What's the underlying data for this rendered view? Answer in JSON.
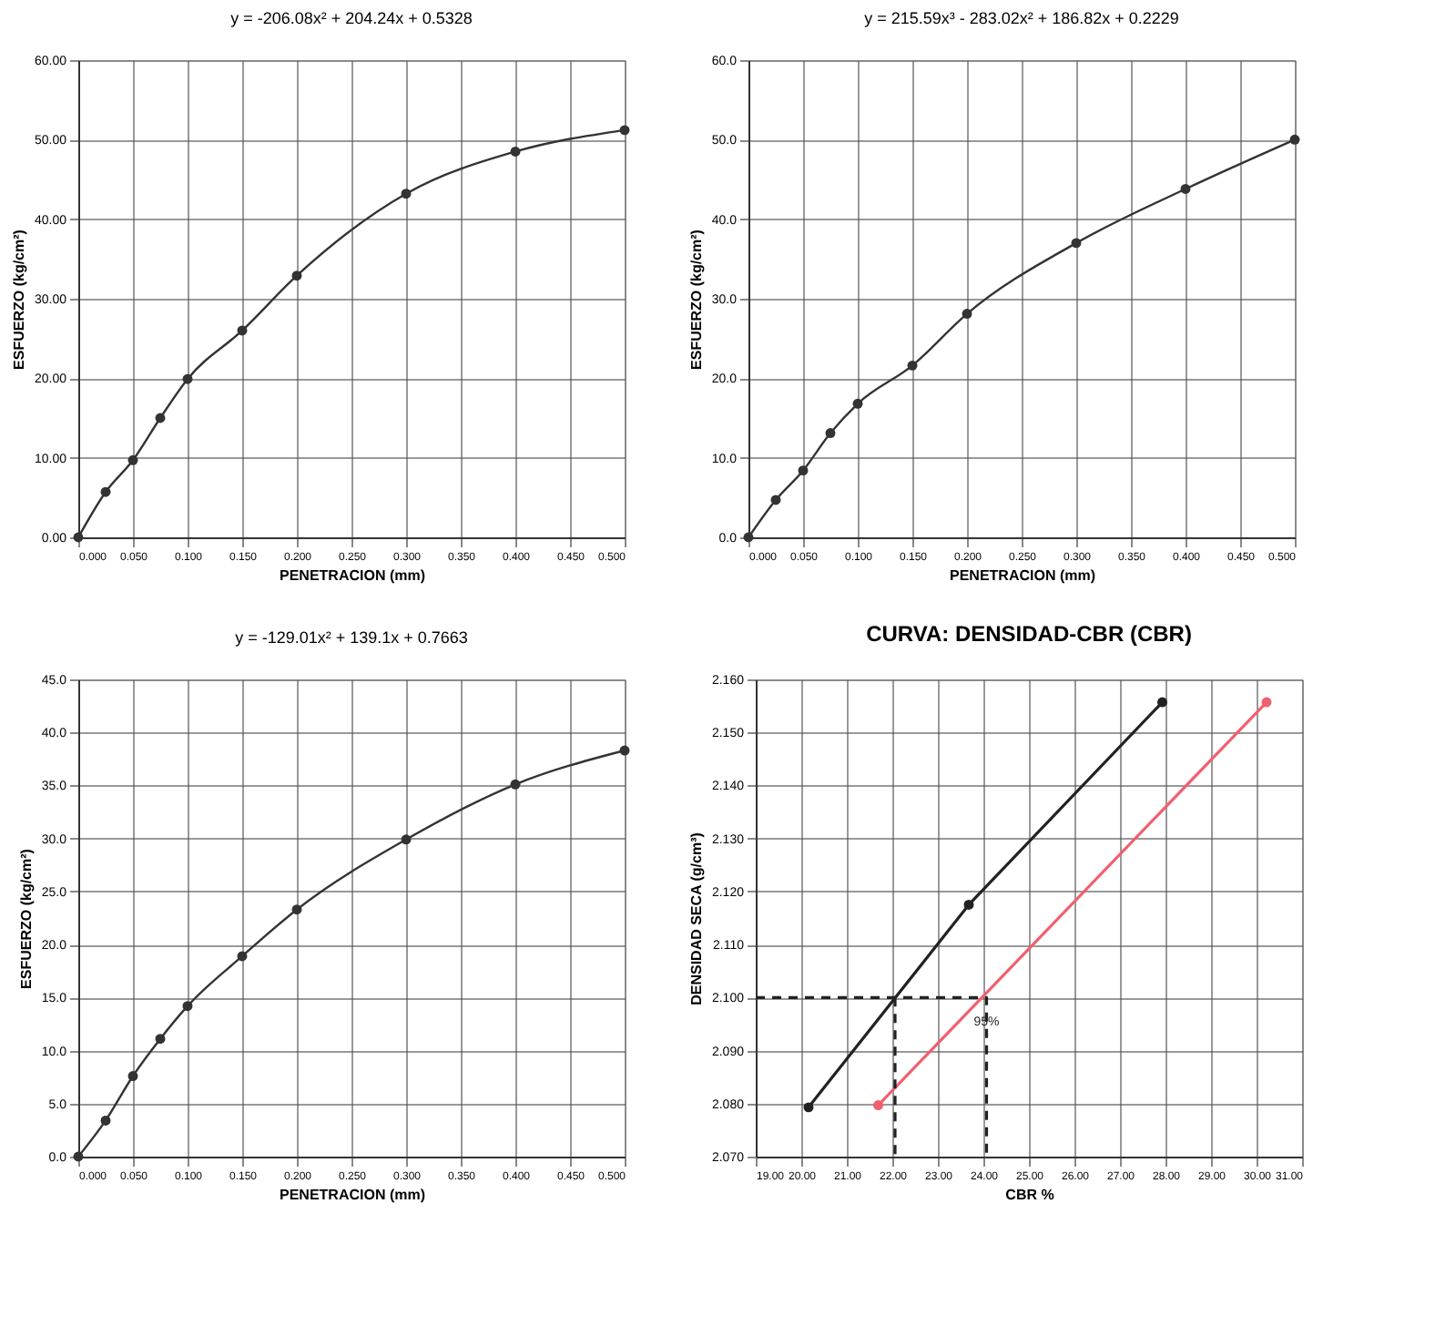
{
  "chart_data": [
    {
      "type": "scatter",
      "title": "y = -206.08x² + 204.24x + 0.5328",
      "xlabel": "PENETRACION (mm)",
      "ylabel": "ESFUERZO (kg/cm²)",
      "grid": true,
      "marker": "circle",
      "xlim": [
        0,
        0.5
      ],
      "ylim": [
        0,
        60
      ],
      "xticks": [
        {
          "value": 0,
          "label": "0.000"
        },
        {
          "value": 0.05,
          "label": "0.050"
        },
        {
          "value": 0.1,
          "label": "0.100"
        },
        {
          "value": 0.15,
          "label": "0.150"
        },
        {
          "value": 0.2,
          "label": "0.200"
        },
        {
          "value": 0.25,
          "label": "0.250"
        },
        {
          "value": 0.3,
          "label": "0.300"
        },
        {
          "value": 0.35,
          "label": "0.350"
        },
        {
          "value": 0.4,
          "label": "0.400"
        },
        {
          "value": 0.45,
          "label": "0.450"
        },
        {
          "value": 0.5,
          "label": "0.500"
        }
      ],
      "yticks": [
        {
          "value": 0,
          "label": "0.00"
        },
        {
          "value": 10,
          "label": "10.00"
        },
        {
          "value": 20,
          "label": "20.00"
        },
        {
          "value": 30,
          "label": "30.00"
        },
        {
          "value": 40,
          "label": "40.00"
        },
        {
          "value": 50,
          "label": "50.00"
        },
        {
          "value": 60,
          "label": "60.00"
        }
      ],
      "series": [
        {
          "type": "line",
          "color": "#333333",
          "x": [
            0,
            0.025,
            0.05,
            0.075,
            0.1,
            0.15,
            0.2,
            0.3,
            0.4,
            0.5
          ],
          "values": [
            0,
            5.7,
            9.7,
            15.0,
            19.9,
            26.0,
            32.9,
            43.2,
            48.5,
            51.2
          ]
        }
      ]
    },
    {
      "type": "scatter",
      "title": "y = 215.59x³ - 283.02x² + 186.82x + 0.2229",
      "xlabel": "PENETRACION (mm)",
      "ylabel": "ESFUERZO (kg/cm²)",
      "grid": true,
      "marker": "circle",
      "xlim": [
        0,
        0.5
      ],
      "ylim": [
        0,
        60
      ],
      "xticks": [
        {
          "value": 0,
          "label": "0.000"
        },
        {
          "value": 0.05,
          "label": "0.050"
        },
        {
          "value": 0.1,
          "label": "0.100"
        },
        {
          "value": 0.15,
          "label": "0.150"
        },
        {
          "value": 0.2,
          "label": "0.200"
        },
        {
          "value": 0.25,
          "label": "0.250"
        },
        {
          "value": 0.3,
          "label": "0.300"
        },
        {
          "value": 0.35,
          "label": "0.350"
        },
        {
          "value": 0.4,
          "label": "0.400"
        },
        {
          "value": 0.45,
          "label": "0.450"
        },
        {
          "value": 0.5,
          "label": "0.500"
        }
      ],
      "yticks": [
        {
          "value": 0,
          "label": "0.0"
        },
        {
          "value": 10,
          "label": "10.0"
        },
        {
          "value": 20,
          "label": "20.0"
        },
        {
          "value": 30,
          "label": "30.0"
        },
        {
          "value": 40,
          "label": "40.0"
        },
        {
          "value": 50,
          "label": "50.0"
        },
        {
          "value": 60,
          "label": "60.0"
        }
      ],
      "series": [
        {
          "type": "line",
          "color": "#333333",
          "x": [
            0,
            0.025,
            0.05,
            0.075,
            0.1,
            0.15,
            0.2,
            0.3,
            0.4,
            0.5
          ],
          "values": [
            0,
            4.7,
            8.4,
            13.1,
            16.8,
            21.6,
            28.1,
            37.0,
            43.8,
            50.0
          ]
        }
      ]
    },
    {
      "type": "scatter",
      "title": "y = -129.01x² + 139.1x + 0.7663",
      "xlabel": "PENETRACION (mm)",
      "ylabel": "ESFUERZO (kg/cm²)",
      "grid": true,
      "marker": "circle",
      "xlim": [
        0,
        0.5
      ],
      "ylim": [
        0,
        45
      ],
      "xticks": [
        {
          "value": 0,
          "label": "0.000"
        },
        {
          "value": 0.05,
          "label": "0.050"
        },
        {
          "value": 0.1,
          "label": "0.100"
        },
        {
          "value": 0.15,
          "label": "0.150"
        },
        {
          "value": 0.2,
          "label": "0.200"
        },
        {
          "value": 0.25,
          "label": "0.250"
        },
        {
          "value": 0.3,
          "label": "0.300"
        },
        {
          "value": 0.35,
          "label": "0.350"
        },
        {
          "value": 0.4,
          "label": "0.400"
        },
        {
          "value": 0.45,
          "label": "0.450"
        },
        {
          "value": 0.5,
          "label": "0.500"
        }
      ],
      "yticks": [
        {
          "value": 0,
          "label": "0.0"
        },
        {
          "value": 5,
          "label": "5.0"
        },
        {
          "value": 10,
          "label": "10.0"
        },
        {
          "value": 15,
          "label": "15.0"
        },
        {
          "value": 20,
          "label": "20.0"
        },
        {
          "value": 25,
          "label": "25.0"
        },
        {
          "value": 30,
          "label": "30.0"
        },
        {
          "value": 35,
          "label": "35.0"
        },
        {
          "value": 40,
          "label": "40.0"
        },
        {
          "value": 45,
          "label": "45.0"
        }
      ],
      "series": [
        {
          "type": "line",
          "color": "#333333",
          "x": [
            0,
            0.025,
            0.05,
            0.075,
            0.1,
            0.15,
            0.2,
            0.3,
            0.4,
            0.5
          ],
          "values": [
            0,
            3.4,
            7.6,
            11.1,
            14.2,
            18.9,
            23.3,
            29.9,
            35.1,
            38.3
          ]
        }
      ]
    },
    {
      "type": "line",
      "title": "CURVA:  DENSIDAD-CBR (CBR)",
      "xlabel": "CBR %",
      "ylabel": "DENSIDAD SECA (g/cm³)",
      "grid": true,
      "marker": "circle",
      "xlim": [
        19,
        31
      ],
      "ylim": [
        2.07,
        2.16
      ],
      "xticks": [
        {
          "value": 19,
          "label": "19.00"
        },
        {
          "value": 20,
          "label": "20.00"
        },
        {
          "value": 21,
          "label": "21.00"
        },
        {
          "value": 22,
          "label": "22.00"
        },
        {
          "value": 23,
          "label": "23.00"
        },
        {
          "value": 24,
          "label": "24.00"
        },
        {
          "value": 25,
          "label": "25.00"
        },
        {
          "value": 26,
          "label": "26.00"
        },
        {
          "value": 27,
          "label": "27.00"
        },
        {
          "value": 28,
          "label": "28.00"
        },
        {
          "value": 29,
          "label": "29.00"
        },
        {
          "value": 30,
          "label": "30.00"
        },
        {
          "value": 31,
          "label": "31.00"
        }
      ],
      "yticks": [
        {
          "value": 2.07,
          "label": "2.070"
        },
        {
          "value": 2.08,
          "label": "2.080"
        },
        {
          "value": 2.09,
          "label": "2.090"
        },
        {
          "value": 2.1,
          "label": "2.100"
        },
        {
          "value": 2.11,
          "label": "2.110"
        },
        {
          "value": 2.12,
          "label": "2.120"
        },
        {
          "value": 2.13,
          "label": "2.130"
        },
        {
          "value": 2.14,
          "label": "2.140"
        },
        {
          "value": 2.15,
          "label": "2.150"
        },
        {
          "value": 2.16,
          "label": "2.160"
        }
      ],
      "annotations": [
        {
          "text": "95%",
          "x": 24.07,
          "y": 2.094
        }
      ],
      "series": [
        {
          "color": "#222222",
          "x": [
            20.16,
            23.68,
            27.93
          ],
          "values": [
            2.0793,
            2.1175,
            2.1557
          ]
        },
        {
          "color": "#f06070",
          "x": [
            21.69,
            30.22
          ],
          "values": [
            2.0797,
            2.1557
          ]
        },
        {
          "color": "#222222",
          "line_style": "dashed",
          "marker": "none",
          "x": [
            19,
            24.07,
            24.07
          ],
          "values": [
            2.1,
            2.1,
            2.07
          ]
        },
        {
          "color": "#222222",
          "line_style": "dashed",
          "marker": "none",
          "x": [
            22.06,
            22.06
          ],
          "values": [
            2.1,
            2.07
          ]
        }
      ]
    }
  ]
}
